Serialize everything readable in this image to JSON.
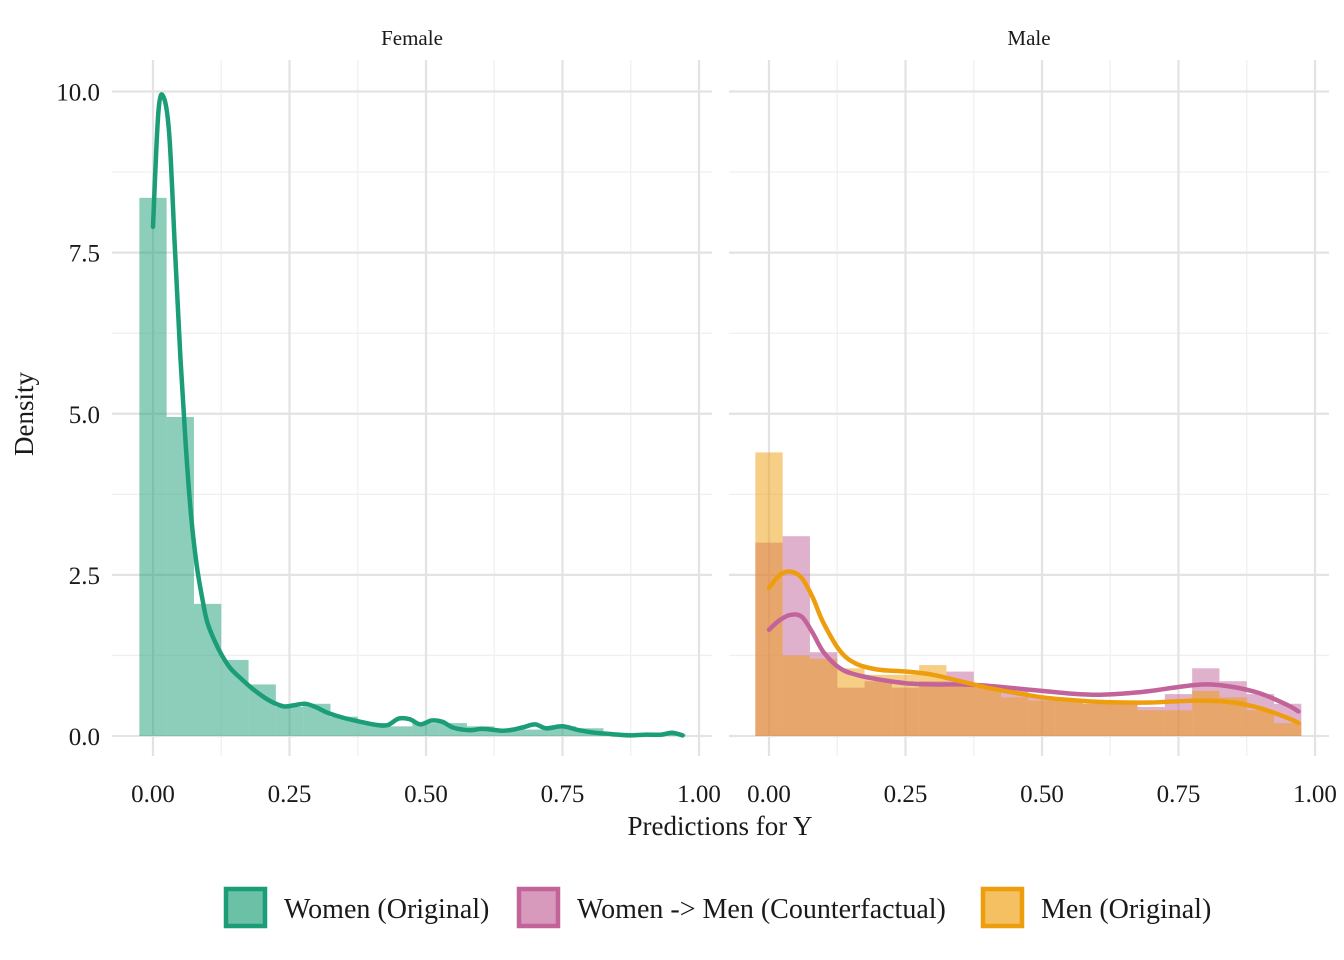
{
  "chart_data": {
    "type": "histogram-density",
    "xlabel": "Predictions for Y",
    "ylabel": "Density",
    "xlim": [
      0,
      1
    ],
    "ylim": [
      0,
      10
    ],
    "x_ticks": [
      "0.00",
      "0.25",
      "0.50",
      "0.75",
      "1.00"
    ],
    "x_tick_values": [
      0,
      0.25,
      0.5,
      0.75,
      1.0
    ],
    "y_ticks": [
      "0.0",
      "2.5",
      "5.0",
      "7.5",
      "10.0"
    ],
    "y_tick_values": [
      0,
      2.5,
      5.0,
      7.5,
      10.0
    ],
    "grid": true,
    "legend_position": "bottom",
    "bin_width": 0.05,
    "bin_starts": [
      -0.025,
      0.025,
      0.075,
      0.125,
      0.175,
      0.225,
      0.275,
      0.325,
      0.375,
      0.425,
      0.475,
      0.525,
      0.575,
      0.625,
      0.675,
      0.725,
      0.775,
      0.825,
      0.875,
      0.925
    ],
    "series": [
      {
        "name": "Women (Original)",
        "key": "women",
        "color": "#1b9e77"
      },
      {
        "name": "Women -> Men (Counterfactual)",
        "key": "cf",
        "color": "#c2649a"
      },
      {
        "name": "Men (Original)",
        "key": "men",
        "color": "#ee9e0c"
      }
    ],
    "panels": [
      {
        "title": "Female",
        "histograms": [
          {
            "series": "women",
            "values": [
              8.35,
              4.95,
              2.05,
              1.18,
              0.8,
              0.45,
              0.5,
              0.3,
              0.2,
              0.15,
              0.2,
              0.2,
              0.15,
              0.1,
              0.1,
              0.15,
              0.12,
              0.05,
              0.03,
              0.03
            ]
          }
        ],
        "densities": [
          {
            "series": "women",
            "points": [
              [
                0.0,
                7.9
              ],
              [
                0.01,
                9.7
              ],
              [
                0.02,
                9.9
              ],
              [
                0.03,
                9.3
              ],
              [
                0.04,
                7.6
              ],
              [
                0.05,
                5.9
              ],
              [
                0.06,
                4.5
              ],
              [
                0.07,
                3.4
              ],
              [
                0.08,
                2.65
              ],
              [
                0.09,
                2.15
              ],
              [
                0.1,
                1.75
              ],
              [
                0.12,
                1.35
              ],
              [
                0.14,
                1.07
              ],
              [
                0.16,
                0.9
              ],
              [
                0.18,
                0.75
              ],
              [
                0.2,
                0.62
              ],
              [
                0.22,
                0.52
              ],
              [
                0.24,
                0.46
              ],
              [
                0.26,
                0.48
              ],
              [
                0.28,
                0.5
              ],
              [
                0.3,
                0.44
              ],
              [
                0.32,
                0.36
              ],
              [
                0.35,
                0.28
              ],
              [
                0.38,
                0.22
              ],
              [
                0.41,
                0.17
              ],
              [
                0.43,
                0.17
              ],
              [
                0.45,
                0.27
              ],
              [
                0.47,
                0.26
              ],
              [
                0.49,
                0.18
              ],
              [
                0.51,
                0.24
              ],
              [
                0.53,
                0.22
              ],
              [
                0.55,
                0.13
              ],
              [
                0.58,
                0.09
              ],
              [
                0.6,
                0.11
              ],
              [
                0.62,
                0.1
              ],
              [
                0.64,
                0.08
              ],
              [
                0.66,
                0.1
              ],
              [
                0.68,
                0.14
              ],
              [
                0.7,
                0.18
              ],
              [
                0.72,
                0.12
              ],
              [
                0.75,
                0.15
              ],
              [
                0.78,
                0.09
              ],
              [
                0.81,
                0.05
              ],
              [
                0.84,
                0.03
              ],
              [
                0.87,
                0.01
              ],
              [
                0.9,
                0.02
              ],
              [
                0.93,
                0.02
              ],
              [
                0.95,
                0.05
              ],
              [
                0.97,
                0.01
              ]
            ]
          }
        ]
      },
      {
        "title": "Male",
        "histograms": [
          {
            "series": "cf",
            "values": [
              3.0,
              3.1,
              1.3,
              0.75,
              0.85,
              0.75,
              0.85,
              1.0,
              0.75,
              0.7,
              0.6,
              0.55,
              0.5,
              0.5,
              0.45,
              0.65,
              1.05,
              0.85,
              0.65,
              0.5
            ]
          },
          {
            "series": "men",
            "values": [
              4.4,
              1.25,
              1.2,
              1.05,
              0.95,
              0.95,
              1.1,
              0.8,
              0.8,
              0.6,
              0.55,
              0.55,
              0.5,
              0.5,
              0.4,
              0.4,
              0.7,
              0.6,
              0.4,
              0.2
            ]
          }
        ],
        "densities": [
          {
            "series": "cf",
            "points": [
              [
                0.0,
                1.65
              ],
              [
                0.02,
                1.8
              ],
              [
                0.04,
                1.88
              ],
              [
                0.06,
                1.85
              ],
              [
                0.08,
                1.6
              ],
              [
                0.1,
                1.3
              ],
              [
                0.13,
                1.05
              ],
              [
                0.16,
                0.95
              ],
              [
                0.2,
                0.88
              ],
              [
                0.25,
                0.82
              ],
              [
                0.3,
                0.8
              ],
              [
                0.35,
                0.8
              ],
              [
                0.4,
                0.78
              ],
              [
                0.45,
                0.74
              ],
              [
                0.5,
                0.7
              ],
              [
                0.55,
                0.66
              ],
              [
                0.6,
                0.64
              ],
              [
                0.65,
                0.66
              ],
              [
                0.7,
                0.7
              ],
              [
                0.75,
                0.76
              ],
              [
                0.8,
                0.8
              ],
              [
                0.85,
                0.76
              ],
              [
                0.9,
                0.66
              ],
              [
                0.95,
                0.48
              ],
              [
                0.97,
                0.38
              ]
            ]
          },
          {
            "series": "men",
            "points": [
              [
                0.0,
                2.3
              ],
              [
                0.02,
                2.5
              ],
              [
                0.04,
                2.55
              ],
              [
                0.06,
                2.45
              ],
              [
                0.08,
                2.15
              ],
              [
                0.1,
                1.75
              ],
              [
                0.13,
                1.32
              ],
              [
                0.16,
                1.12
              ],
              [
                0.2,
                1.03
              ],
              [
                0.25,
                1.0
              ],
              [
                0.3,
                0.95
              ],
              [
                0.35,
                0.85
              ],
              [
                0.4,
                0.75
              ],
              [
                0.45,
                0.67
              ],
              [
                0.5,
                0.6
              ],
              [
                0.55,
                0.56
              ],
              [
                0.6,
                0.53
              ],
              [
                0.65,
                0.52
              ],
              [
                0.7,
                0.52
              ],
              [
                0.75,
                0.54
              ],
              [
                0.8,
                0.55
              ],
              [
                0.85,
                0.52
              ],
              [
                0.9,
                0.43
              ],
              [
                0.95,
                0.28
              ],
              [
                0.97,
                0.2
              ]
            ]
          }
        ]
      }
    ]
  }
}
